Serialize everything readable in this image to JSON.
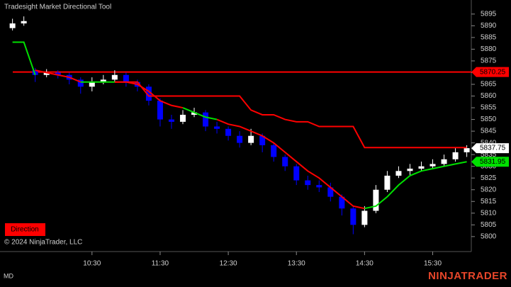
{
  "chart_data": {
    "type": "candlestick",
    "title": "Tradesight Market Directional Tool",
    "copyright": "© 2024 NinjaTrader, LLC",
    "button": "Direction",
    "tab": "MD",
    "logo": "NINJATRADER",
    "x": [
      560,
      570,
      580,
      590,
      600,
      610,
      620,
      630,
      640,
      650,
      660,
      670,
      680,
      690,
      700,
      710,
      720,
      730,
      740,
      750,
      760,
      770,
      780,
      790,
      800,
      810,
      820,
      830,
      840,
      850,
      860,
      870,
      880,
      890,
      900,
      910,
      920,
      930,
      940,
      950,
      960
    ],
    "open": [
      5889,
      5891,
      5871,
      5869,
      5870,
      5869,
      5867,
      5864,
      5866,
      5867,
      5869,
      5866,
      5864,
      5858,
      5850,
      5849,
      5852,
      5853,
      5847,
      5846,
      5843,
      5840,
      5843,
      5839,
      5834,
      5830,
      5824,
      5822,
      5821,
      5817,
      5812,
      5805,
      5811,
      5820,
      5826,
      5828,
      5829,
      5830,
      5831,
      5833,
      5836
    ],
    "high": [
      5893,
      5894,
      5872,
      5871.5,
      5871,
      5870,
      5868,
      5868,
      5869,
      5871,
      5870,
      5867,
      5865,
      5859,
      5852,
      5854,
      5855,
      5854,
      5849,
      5847,
      5845,
      5846,
      5844,
      5840,
      5835,
      5831,
      5826,
      5824,
      5823,
      5818,
      5813,
      5813,
      5822,
      5828,
      5830,
      5831,
      5832,
      5833,
      5835,
      5838,
      5839
    ],
    "low": [
      5888,
      5890,
      5866,
      5868,
      5867.5,
      5865,
      5861,
      5862,
      5865,
      5866,
      5864,
      5862,
      5856,
      5847,
      5846,
      5848,
      5851,
      5845,
      5844,
      5841,
      5838,
      5839,
      5836,
      5832,
      5828,
      5822,
      5820,
      5819,
      5815,
      5809,
      5801,
      5804,
      5810,
      5819,
      5825,
      5826,
      5828,
      5829,
      5830,
      5832,
      5834
    ],
    "close": [
      5891,
      5892,
      5869,
      5870,
      5869,
      5867,
      5864,
      5866,
      5867,
      5869,
      5866,
      5864,
      5858,
      5850,
      5849,
      5852,
      5853,
      5847,
      5846,
      5843,
      5840,
      5843,
      5839,
      5834,
      5830,
      5824,
      5822,
      5821,
      5817,
      5812,
      5805,
      5811,
      5820,
      5826,
      5828,
      5829,
      5830,
      5831,
      5833,
      5836,
      5837.75
    ],
    "up_color": "#ffffff",
    "down_color": "#0000ff",
    "series": [
      {
        "color": "#ff0000",
        "values": [
          null,
          null,
          5871,
          5870,
          5869,
          5868,
          5866,
          null,
          null,
          5866,
          5866,
          5865,
          5862,
          5858,
          5856,
          5855,
          null,
          null,
          5850,
          5848,
          5847,
          5845,
          5843,
          5840,
          5836,
          5832,
          5828,
          5825,
          5821,
          5817,
          5813,
          5812,
          null,
          null,
          null,
          null,
          null,
          null,
          null,
          null,
          null
        ]
      },
      {
        "color": "#00e000",
        "values": [
          5883,
          5883,
          5869,
          null,
          null,
          null,
          5866,
          5866,
          5866,
          5866,
          null,
          null,
          null,
          null,
          null,
          5855,
          5853,
          5851,
          5850,
          null,
          null,
          null,
          null,
          null,
          null,
          null,
          null,
          null,
          null,
          null,
          null,
          5812,
          5813,
          5817,
          5822,
          5826,
          5828,
          5829,
          5830,
          5831,
          5831.95
        ]
      },
      {
        "color": "#ff0000",
        "values": [
          null,
          null,
          null,
          null,
          null,
          null,
          null,
          null,
          null,
          5866,
          5866,
          5866,
          5860,
          5860,
          5860,
          5860,
          5860,
          5860,
          5860,
          5860,
          5860,
          5854,
          5852,
          5852,
          5850,
          5849,
          5849,
          5847,
          5847,
          5847,
          5847,
          5838,
          5838,
          5838,
          5838,
          5838,
          5838,
          5838,
          5838,
          5838,
          5838
        ]
      }
    ],
    "reference_line": {
      "value": 5870.25,
      "color": "#ff0000"
    },
    "price_markers": [
      {
        "value": 5870.25,
        "color": "#ff0000"
      },
      {
        "value": 5837.75,
        "color": "#ffffff"
      },
      {
        "value": 5831.95,
        "color": "#00e000"
      }
    ],
    "xlim": [
      549,
      964
    ],
    "xticks": [
      {
        "value": 630,
        "label": "10:30"
      },
      {
        "value": 690,
        "label": "11:30"
      },
      {
        "value": 750,
        "label": "12:30"
      },
      {
        "value": 810,
        "label": "13:30"
      },
      {
        "value": 870,
        "label": "14:30"
      },
      {
        "value": 930,
        "label": "15:30"
      }
    ],
    "ylim": [
      5793.6,
      5901
    ],
    "yticks": [
      5800,
      5805,
      5810,
      5815,
      5820,
      5825,
      5830,
      5835,
      5840,
      5845,
      5850,
      5855,
      5860,
      5865,
      5870,
      5875,
      5880,
      5885,
      5890,
      5895
    ]
  }
}
